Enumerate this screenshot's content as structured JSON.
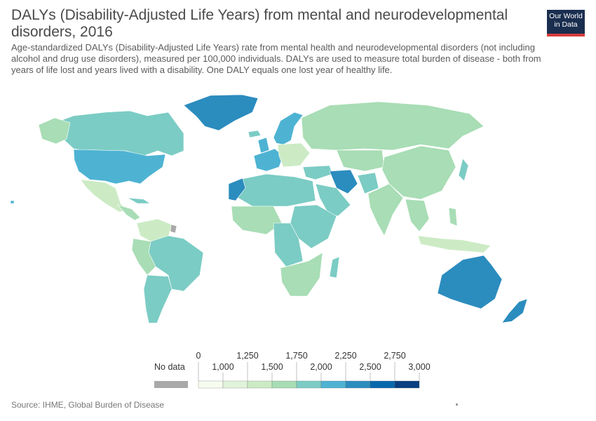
{
  "header": {
    "title": "DALYs (Disability-Adjusted Life Years) from mental and neurodevelopmental disorders, 2016",
    "subtitle": "Age-standardized DALYs (Disability-Adjusted Life Years) rate from mental health and neurodevelopmental disorders (not including alcohol and drug use disorders), measured per 100,000 individuals. DALYs are used to measure total burden of disease - both from years of life lost and years lived with a disability. One DALY equals one lost year of healthy life.",
    "logo_line1": "Our World",
    "logo_line2": "in Data"
  },
  "legend": {
    "no_data_label": "No data",
    "no_data_color": "#a9a9a9",
    "tick_labels_top": [
      "0",
      "1,250",
      "1,750",
      "2,250",
      "2,750"
    ],
    "tick_labels_bottom": [
      "1,000",
      "1,500",
      "2,000",
      "2,500",
      "3,000"
    ],
    "bins": [
      {
        "from": 0,
        "to": 1000,
        "color": "#f7fcf0"
      },
      {
        "from": 1000,
        "to": 1250,
        "color": "#e0f3db"
      },
      {
        "from": 1250,
        "to": 1500,
        "color": "#ccebc5"
      },
      {
        "from": 1500,
        "to": 1750,
        "color": "#a8ddb5"
      },
      {
        "from": 1750,
        "to": 2000,
        "color": "#7bccc4"
      },
      {
        "from": 2000,
        "to": 2250,
        "color": "#4eb3d3"
      },
      {
        "from": 2250,
        "to": 2500,
        "color": "#2b8cbe"
      },
      {
        "from": 2500,
        "to": 2750,
        "color": "#0868ac"
      },
      {
        "from": 2750,
        "to": 3000,
        "color": "#084081"
      }
    ]
  },
  "footer": {
    "source": "Source: IHME, Global Burden of Disease"
  }
}
